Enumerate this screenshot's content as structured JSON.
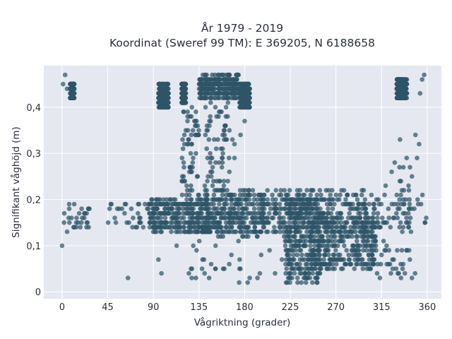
{
  "chart_data": {
    "type": "scatter",
    "title": "År 1979 - 2019",
    "subtitle": "Koordinat (Sweref 99 TM): E 369205, N 6188658",
    "xlabel": "Vågriktning (grader)",
    "ylabel": "Signifikant våghöjd (m)",
    "xlim": [
      -18,
      374
    ],
    "ylim": [
      -0.015,
      0.49
    ],
    "xticks": [
      0,
      45,
      90,
      135,
      180,
      225,
      270,
      315,
      360
    ],
    "yticks": [
      0,
      0.1,
      0.2,
      0.3,
      0.4
    ],
    "ytick_labels": [
      "0",
      "0,1",
      "0,2",
      "0,3",
      "0,4"
    ],
    "grid": true,
    "marker_color": "#2f5468",
    "plot_background": "#e5e8f0",
    "clusters": [
      {
        "x": [
          8,
          12
        ],
        "y": [
          0.42,
          0.45
        ],
        "density": "high"
      },
      {
        "x": [
          95,
          105
        ],
        "y": [
          0.4,
          0.45
        ],
        "density": "high"
      },
      {
        "x": [
          118,
          122
        ],
        "y": [
          0.41,
          0.45
        ],
        "density": "high"
      },
      {
        "x": [
          135,
          175
        ],
        "y": [
          0.42,
          0.47
        ],
        "density": "high"
      },
      {
        "x": [
          175,
          185
        ],
        "y": [
          0.4,
          0.45
        ],
        "density": "high"
      },
      {
        "x": [
          330,
          340
        ],
        "y": [
          0.42,
          0.46
        ],
        "density": "high"
      },
      {
        "x": [
          118,
          135
        ],
        "y": [
          0.2,
          0.4
        ],
        "density": "medium"
      },
      {
        "x": [
          140,
          165
        ],
        "y": [
          0.22,
          0.42
        ],
        "density": "medium"
      },
      {
        "x": [
          85,
          145
        ],
        "y": [
          0.13,
          0.2
        ],
        "density": "high"
      },
      {
        "x": [
          140,
          200
        ],
        "y": [
          0.12,
          0.22
        ],
        "density": "high"
      },
      {
        "x": [
          195,
          300
        ],
        "y": [
          0.13,
          0.22
        ],
        "density": "high"
      },
      {
        "x": [
          220,
          255
        ],
        "y": [
          0.02,
          0.2
        ],
        "density": "high"
      },
      {
        "x": [
          245,
          310
        ],
        "y": [
          0.05,
          0.16
        ],
        "density": "high"
      },
      {
        "x": [
          295,
          345
        ],
        "y": [
          0.12,
          0.2
        ],
        "density": "medium"
      },
      {
        "x": [
          0,
          30
        ],
        "y": [
          0.13,
          0.19
        ],
        "density": "low"
      },
      {
        "x": [
          40,
          90
        ],
        "y": [
          0.14,
          0.19
        ],
        "density": "low"
      },
      {
        "x": [
          120,
          220
        ],
        "y": [
          0.02,
          0.12
        ],
        "density": "low"
      },
      {
        "x": [
          310,
          345
        ],
        "y": [
          0.03,
          0.12
        ],
        "density": "low"
      },
      {
        "x": [
          330,
          358
        ],
        "y": [
          0.13,
          0.35
        ],
        "density": "low"
      }
    ],
    "points": [
      [
        0,
        0.1
      ],
      [
        1,
        0.45
      ],
      [
        3,
        0.47
      ],
      [
        5,
        0.44
      ],
      [
        2,
        0.15
      ],
      [
        5,
        0.13
      ],
      [
        7,
        0.19
      ],
      [
        12,
        0.19
      ],
      [
        14,
        0.15
      ],
      [
        18,
        0.14
      ],
      [
        22,
        0.17
      ],
      [
        25,
        0.15
      ],
      [
        27,
        0.18
      ],
      [
        48,
        0.19
      ],
      [
        52,
        0.16
      ],
      [
        62,
        0.19
      ],
      [
        66,
        0.15
      ],
      [
        65,
        0.03
      ],
      [
        70,
        0.16
      ],
      [
        75,
        0.19
      ],
      [
        80,
        0.14
      ],
      [
        84,
        0.18
      ],
      [
        95,
        0.07
      ],
      [
        98,
        0.04
      ],
      [
        113,
        0.1
      ],
      [
        125,
        0.04
      ],
      [
        128,
        0.05
      ],
      [
        132,
        0.03
      ],
      [
        138,
        0.05
      ],
      [
        140,
        0.07
      ],
      [
        145,
        0.03
      ],
      [
        147,
        0.06
      ],
      [
        160,
        0.05
      ],
      [
        167,
        0.08
      ],
      [
        175,
        0.05
      ],
      [
        185,
        0.03
      ],
      [
        195,
        0.04
      ],
      [
        210,
        0.04
      ],
      [
        150,
        0.33
      ],
      [
        152,
        0.31
      ],
      [
        165,
        0.35
      ],
      [
        168,
        0.33
      ],
      [
        170,
        0.32
      ],
      [
        180,
        0.37
      ],
      [
        176,
        0.34
      ],
      [
        170,
        0.29
      ],
      [
        245,
        0.21
      ],
      [
        290,
        0.21
      ],
      [
        305,
        0.21
      ],
      [
        307,
        0.19
      ],
      [
        310,
        0.2
      ],
      [
        318,
        0.21
      ],
      [
        319,
        0.23
      ],
      [
        325,
        0.26
      ],
      [
        328,
        0.28
      ],
      [
        330,
        0.21
      ],
      [
        333,
        0.24
      ],
      [
        335,
        0.22
      ],
      [
        337,
        0.19
      ],
      [
        339,
        0.2
      ],
      [
        342,
        0.22
      ],
      [
        345,
        0.25
      ],
      [
        350,
        0.29
      ],
      [
        352,
        0.32
      ],
      [
        353,
        0.43
      ],
      [
        355,
        0.46
      ],
      [
        357,
        0.47
      ],
      [
        358,
        0.15
      ],
      [
        359,
        0.16
      ],
      [
        348,
        0.04
      ],
      [
        345,
        0.03
      ],
      [
        338,
        0.04
      ],
      [
        332,
        0.04
      ],
      [
        326,
        0.05
      ],
      [
        322,
        0.06
      ],
      [
        318,
        0.09
      ],
      [
        315,
        0.08
      ],
      [
        320,
        0.1
      ],
      [
        335,
        0.09
      ],
      [
        340,
        0.09
      ]
    ]
  }
}
